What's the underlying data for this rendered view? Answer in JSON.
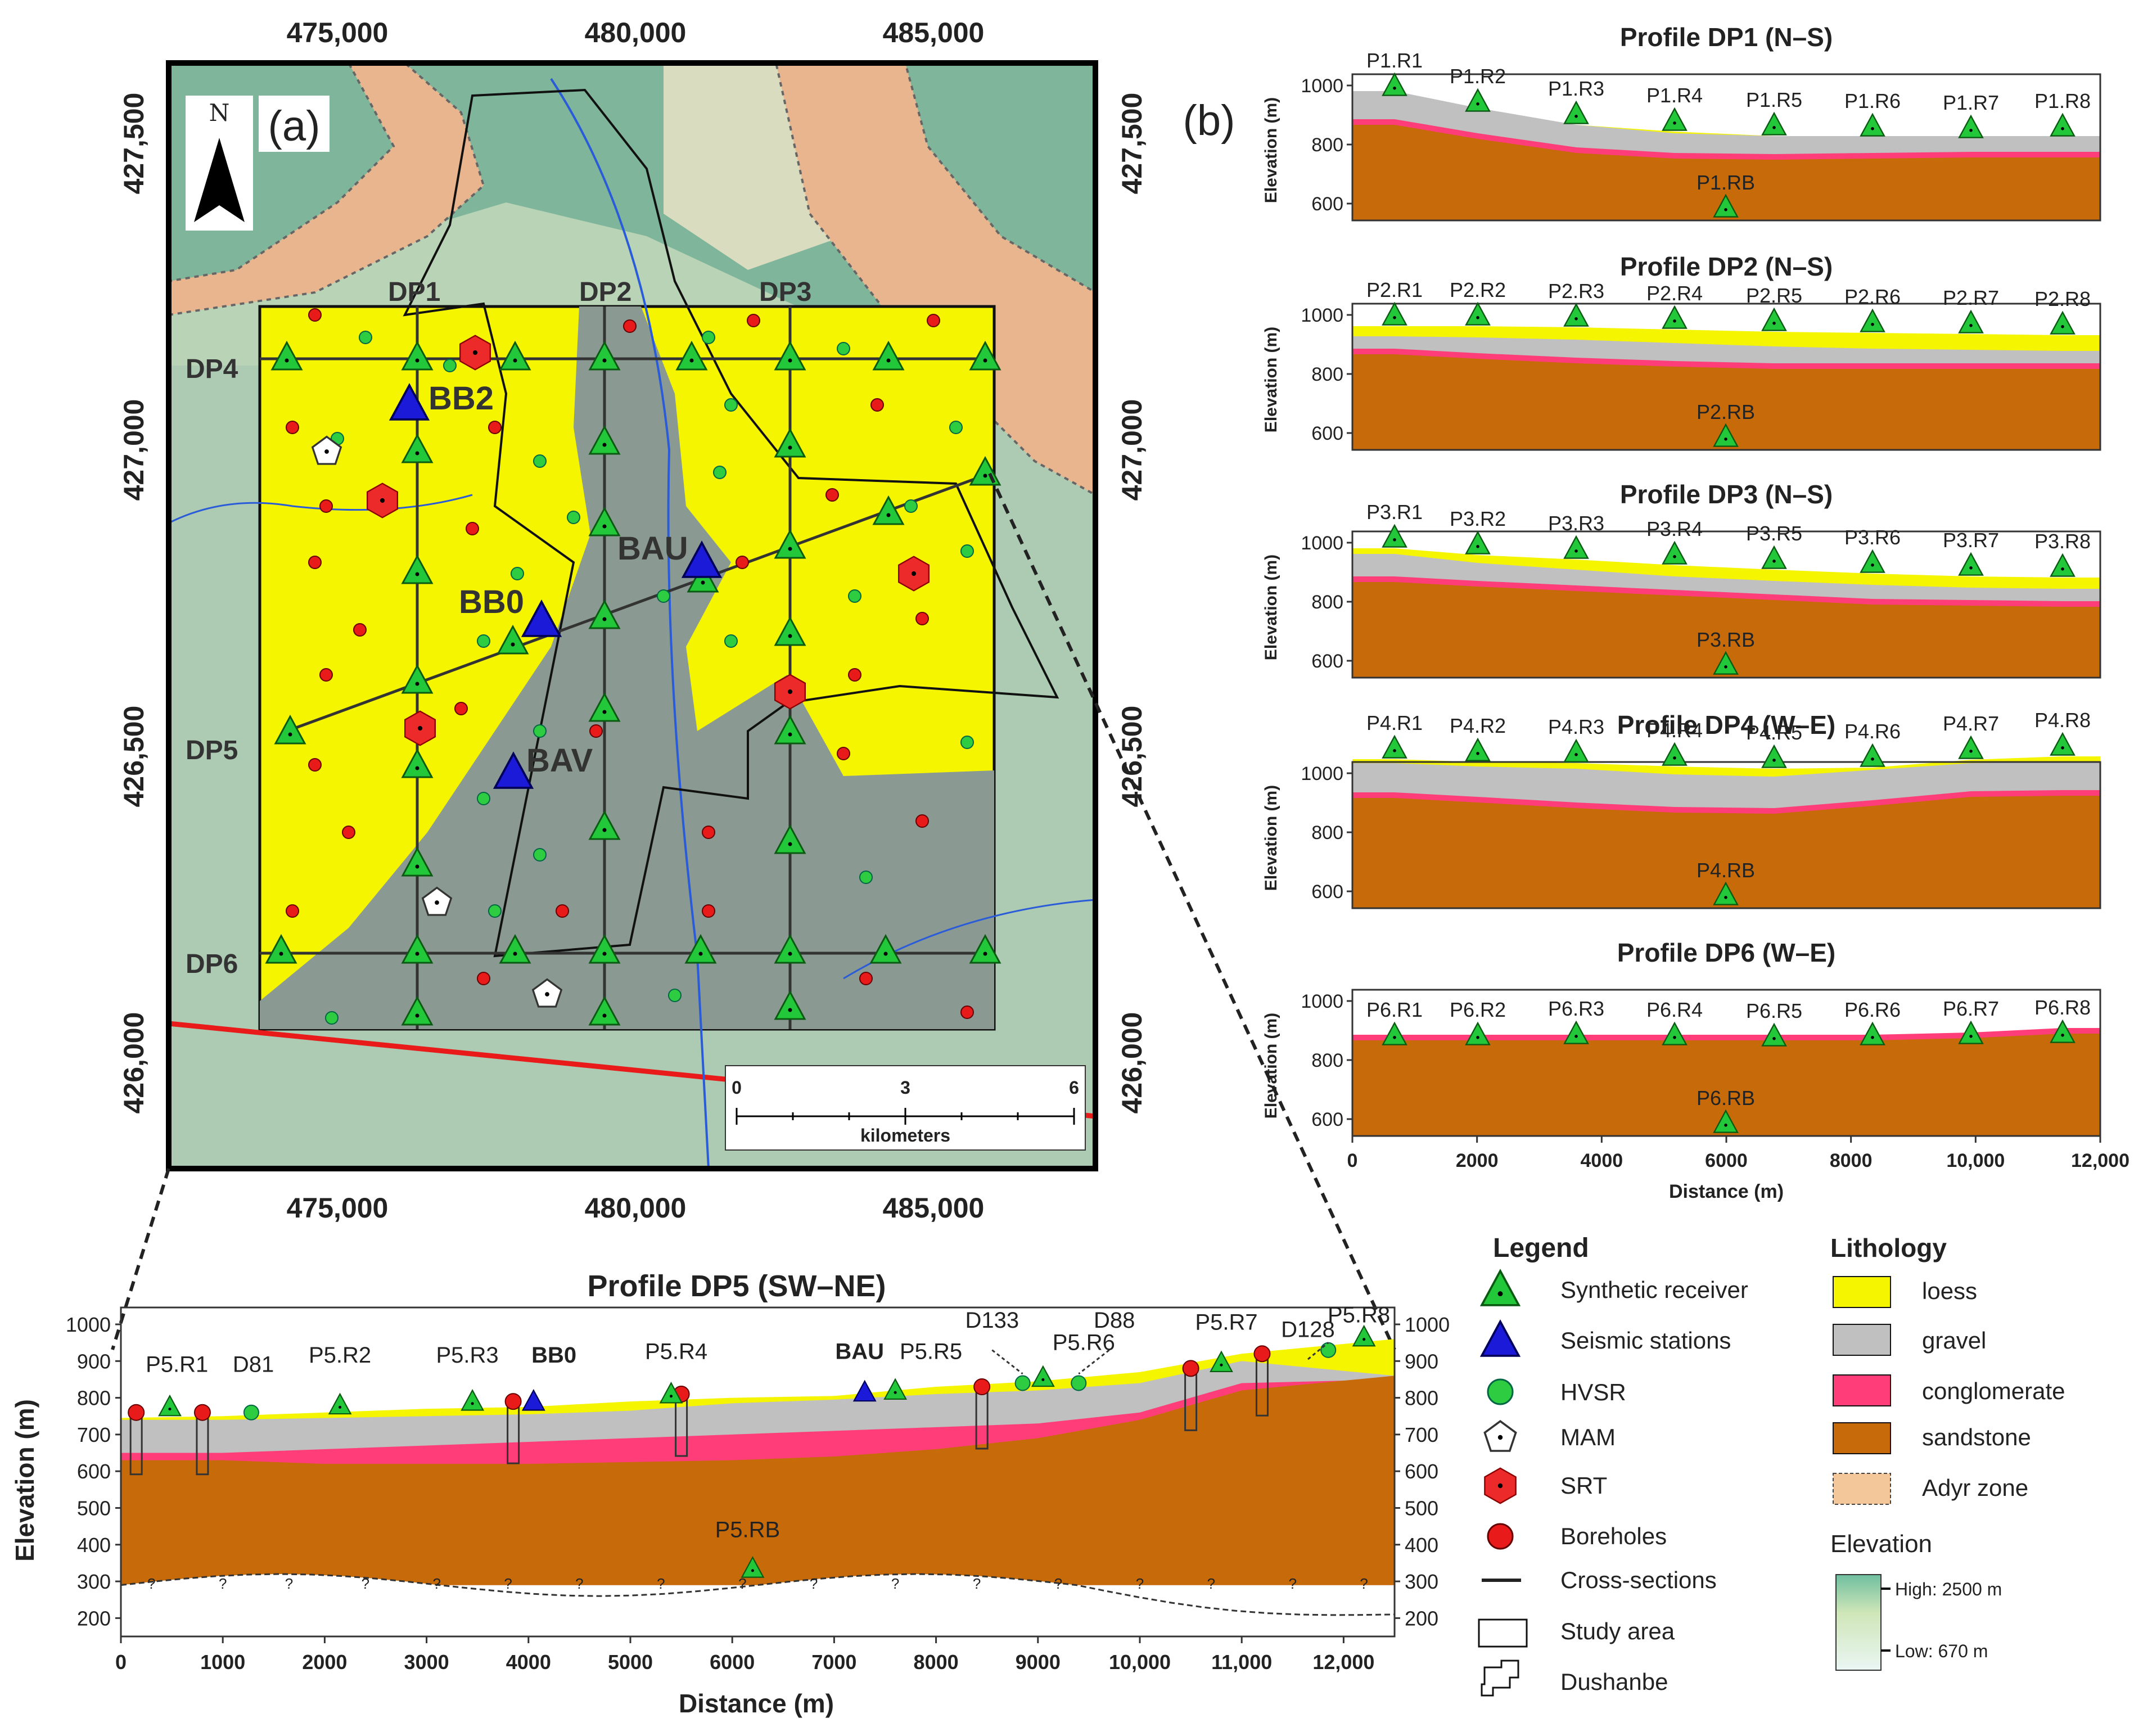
{
  "panel_labels": {
    "a": "(a)",
    "b": "(b)"
  },
  "map": {
    "north": "N",
    "x_ticks": [
      "475,000",
      "480,000",
      "485,000"
    ],
    "y_ticks": [
      "427,500",
      "427,000",
      "426,500",
      "426,000"
    ],
    "profile_labels": [
      "DP1",
      "DP2",
      "DP3",
      "DP4",
      "DP5",
      "DP6"
    ],
    "stations": [
      "BB2",
      "BB0",
      "BAU",
      "BAV"
    ],
    "scalebar": {
      "ticks": [
        "0",
        "3",
        "6"
      ],
      "unit": "kilometers"
    }
  },
  "profiles": [
    {
      "title": "Profile DP1 (N–S)",
      "rb": "P1.RB",
      "receivers": [
        "P1.R1",
        "P1.R2",
        "P1.R3",
        "P1.R4",
        "P1.R5",
        "P1.R6",
        "P1.R7",
        "P1.R8"
      ]
    },
    {
      "title": "Profile DP2 (N–S)",
      "rb": "P2.RB",
      "receivers": [
        "P2.R1",
        "P2.R2",
        "P2.R3",
        "P2.R4",
        "P2.R5",
        "P2.R6",
        "P2.R7",
        "P2.R8"
      ]
    },
    {
      "title": "Profile DP3 (N–S)",
      "rb": "P3.RB",
      "receivers": [
        "P3.R1",
        "P3.R2",
        "P3.R3",
        "P3.R4",
        "P3.R5",
        "P3.R6",
        "P3.R7",
        "P3.R8"
      ]
    },
    {
      "title": "Profile DP4 (W–E)",
      "rb": "P4.RB",
      "receivers": [
        "P4.R1",
        "P4.R2",
        "P4.R3",
        "P4.R4",
        "P4.R5",
        "P4.R6",
        "P4.R7",
        "P4.R8"
      ]
    },
    {
      "title": "Profile DP6 (W–E)",
      "rb": "P6.RB",
      "receivers": [
        "P6.R1",
        "P6.R2",
        "P6.R3",
        "P6.R4",
        "P6.R5",
        "P6.R6",
        "P6.R7",
        "P6.R8"
      ]
    }
  ],
  "profile_axes": {
    "ylabel": "Elevation (m)",
    "yticks": [
      "1000",
      "800",
      "600"
    ],
    "xlabel": "Distance (m)",
    "xticks": [
      "0",
      "2000",
      "4000",
      "6000",
      "8000",
      "10,000",
      "12,000"
    ]
  },
  "dp5": {
    "title": "Profile DP5 (SW–NE)",
    "ylabel": "Elevation (m)",
    "xlabel": "Distance (m)",
    "yticks": [
      "1000",
      "900",
      "800",
      "700",
      "600",
      "500",
      "400",
      "300",
      "200"
    ],
    "xticks": [
      "0",
      "1000",
      "2000",
      "3000",
      "4000",
      "5000",
      "6000",
      "7000",
      "8000",
      "9000",
      "10,000",
      "11,000",
      "12,000"
    ],
    "labels": [
      "P5.R1",
      "D81",
      "P5.R2",
      "P5.R3",
      "BB0",
      "P5.R4",
      "BAU",
      "P5.R5",
      "D133",
      "P5.R6",
      "D88",
      "P5.R7",
      "D128",
      "P5.R8",
      "P5.RB"
    ],
    "q": "?"
  },
  "legend": {
    "title": "Legend",
    "items": [
      "Synthetic receiver",
      "Seismic stations",
      "HVSR",
      "MAM",
      "SRT",
      "Boreholes",
      "Cross-sections",
      "Study area",
      "Dushanbe"
    ]
  },
  "lithology": {
    "title": "Lithology",
    "items": [
      {
        "name": "loess",
        "color": "#f5f500"
      },
      {
        "name": "gravel",
        "color": "#c0c0c0"
      },
      {
        "name": "conglomerate",
        "color": "#ff3d78"
      },
      {
        "name": "sandstone",
        "color": "#c66a0a"
      },
      {
        "name": "Adyr zone",
        "color": "#f3c79a"
      }
    ],
    "elevation_title": "Elevation",
    "high": "High: 2500 m",
    "low": "Low: 670 m"
  }
}
